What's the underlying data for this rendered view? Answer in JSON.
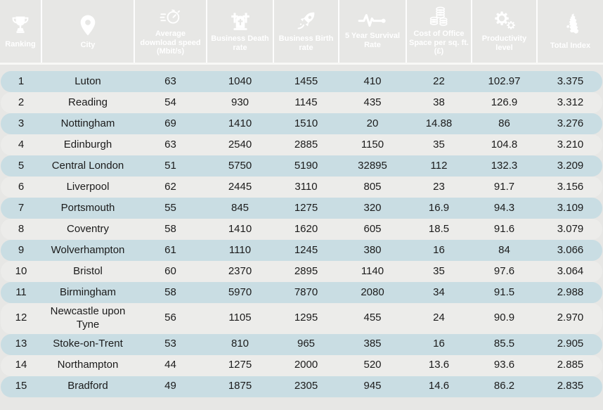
{
  "chart_data": {
    "type": "table",
    "title": "",
    "columns": [
      {
        "key": "ranking",
        "label": "Ranking",
        "icon": "trophy-icon"
      },
      {
        "key": "city",
        "label": "City",
        "icon": "location-pin-icon"
      },
      {
        "key": "avg_download_speed",
        "label": "Average download speed (Mbit/s)",
        "icon": "speedometer-icon"
      },
      {
        "key": "business_death_rate",
        "label": "Business Death rate",
        "icon": "gravestones-icon"
      },
      {
        "key": "business_birth_rate",
        "label": "Business Birth rate",
        "icon": "rocket-icon"
      },
      {
        "key": "five_year_survival_rate",
        "label": "5 Year Survival Rate",
        "icon": "pulse-icon"
      },
      {
        "key": "office_space_cost",
        "label": "Cost of Office Space per sq. ft. (£)",
        "icon": "coins-icon"
      },
      {
        "key": "productivity_level",
        "label": "Productivity level",
        "icon": "gears-icon"
      },
      {
        "key": "total_index",
        "label": "Total Index",
        "icon": "uk-map-icon"
      }
    ],
    "rows": [
      [
        "1",
        "Luton",
        "63",
        "1040",
        "1455",
        "410",
        "22",
        "102.97",
        "3.375"
      ],
      [
        "2",
        "Reading",
        "54",
        "930",
        "1145",
        "435",
        "38",
        "126.9",
        "3.312"
      ],
      [
        "3",
        "Nottingham",
        "69",
        "1410",
        "1510",
        "20",
        "14.88",
        "86",
        "3.276"
      ],
      [
        "4",
        "Edinburgh",
        "63",
        "2540",
        "2885",
        "1150",
        "35",
        "104.8",
        "3.210"
      ],
      [
        "5",
        "Central London",
        "51",
        "5750",
        "5190",
        "32895",
        "112",
        "132.3",
        "3.209"
      ],
      [
        "6",
        "Liverpool",
        "62",
        "2445",
        "3110",
        "805",
        "23",
        "91.7",
        "3.156"
      ],
      [
        "7",
        "Portsmouth",
        "55",
        "845",
        "1275",
        "320",
        "16.9",
        "94.3",
        "3.109"
      ],
      [
        "8",
        "Coventry",
        "58",
        "1410",
        "1620",
        "605",
        "18.5",
        "91.6",
        "3.079"
      ],
      [
        "9",
        "Wolverhampton",
        "61",
        "1110",
        "1245",
        "380",
        "16",
        "84",
        "3.066"
      ],
      [
        "10",
        "Bristol",
        "60",
        "2370",
        "2895",
        "1140",
        "35",
        "97.6",
        "3.064"
      ],
      [
        "11",
        "Birmingham",
        "58",
        "5970",
        "7870",
        "2080",
        "34",
        "91.5",
        "2.988"
      ],
      [
        "12",
        "Newcastle upon Tyne",
        "56",
        "1105",
        "1295",
        "455",
        "24",
        "90.9",
        "2.970"
      ],
      [
        "13",
        "Stoke-on-Trent",
        "53",
        "810",
        "965",
        "385",
        "16",
        "85.5",
        "2.905"
      ],
      [
        "14",
        "Northampton",
        "44",
        "1275",
        "2000",
        "520",
        "13.6",
        "93.6",
        "2.885"
      ],
      [
        "15",
        "Bradford",
        "49",
        "1875",
        "2305",
        "945",
        "14.6",
        "86.2",
        "2.835"
      ]
    ]
  },
  "colors": {
    "header_gradient_start": "#2fcad2",
    "header_gradient_mid": "#1e84c0",
    "header_gradient_end": "#0e52a0",
    "header_text": "#ffffff",
    "row_highlight": "#c9dde3",
    "row_alternate": "#ececea",
    "page_background": "#e7e7e5",
    "body_text": "#1b1b1b"
  }
}
